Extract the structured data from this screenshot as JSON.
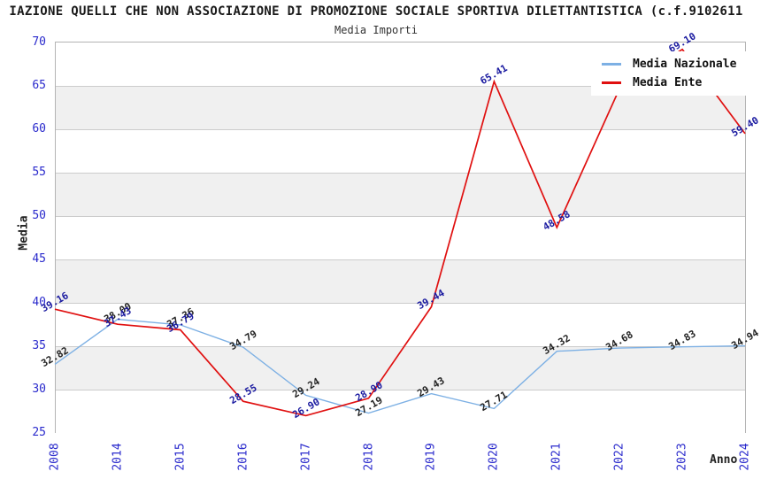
{
  "title": "IAZIONE QUELLI CHE NON ASSOCIAZIONE DI PROMOZIONE SOCIALE SPORTIVA DILETTANTISTICA (c.f.9102611",
  "subtitle": "Media Importi",
  "colors": {
    "axis_text": "#2a2acc",
    "grid_line": "#cccccc",
    "band_gray": "#f0f0f0",
    "plot_border": "#b4b4b4",
    "national_line": "#7db0e4",
    "entity_line": "#e01010",
    "national_label": "#222222",
    "entity_label": "#1a1aa0"
  },
  "chart_data": {
    "type": "line",
    "title": "Media Importi",
    "xlabel": "Anno",
    "ylabel": "Media",
    "ylim": [
      25,
      70
    ],
    "ytick_step": 5,
    "yticks": [
      25,
      30,
      35,
      40,
      45,
      50,
      55,
      60,
      65,
      70
    ],
    "grid": true,
    "legend_position": "top-right",
    "categories": [
      "2008",
      "2014",
      "2015",
      "2016",
      "2017",
      "2018",
      "2019",
      "2020",
      "2021",
      "2022",
      "2023",
      "2024"
    ],
    "series": [
      {
        "name": "Media Nazionale",
        "color": "#7db0e4",
        "label_color": "#222222",
        "values": [
          32.82,
          38.0,
          37.36,
          34.79,
          29.24,
          27.19,
          29.43,
          27.71,
          34.32,
          34.68,
          34.83,
          34.94
        ],
        "labels": [
          "32.82",
          "38.00",
          "37.36",
          "34.79",
          "29.24",
          "27.19",
          "29.43",
          "27.71",
          "34.32",
          "34.68",
          "34.83",
          "34.94"
        ]
      },
      {
        "name": "Media Ente",
        "color": "#e01010",
        "label_color": "#1a1aa0",
        "values": [
          39.16,
          37.43,
          36.79,
          28.55,
          26.9,
          28.9,
          39.44,
          65.41,
          48.58,
          64.6,
          69.1,
          59.4
        ],
        "labels": [
          "39.16",
          "37.43",
          "36.79",
          "28.55",
          "26.90",
          "28.90",
          "39.44",
          "65.41",
          "48.58",
          "",
          "69.10",
          "59.40"
        ]
      }
    ]
  }
}
